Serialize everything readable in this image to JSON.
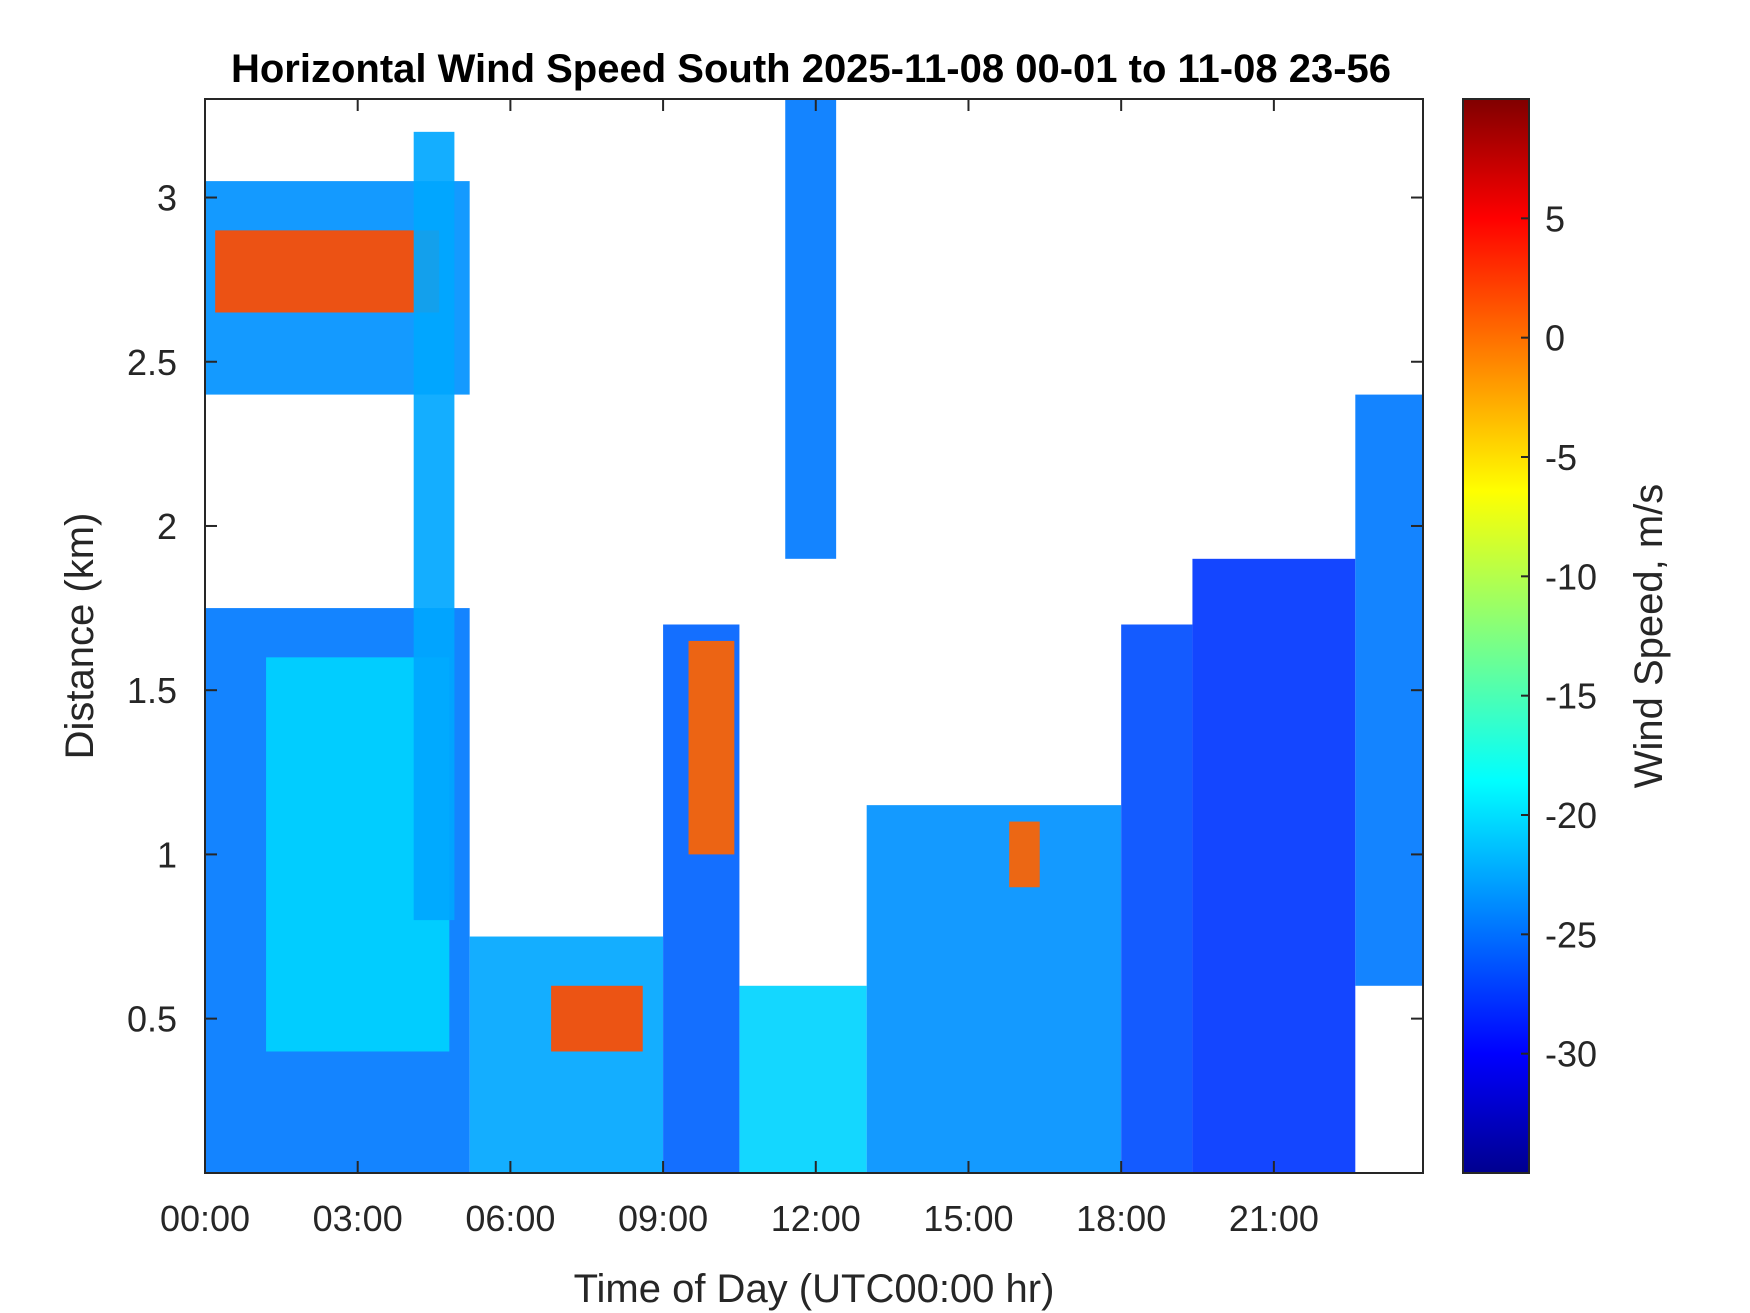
{
  "chart_data": {
    "type": "heatmap",
    "title": "Horizontal Wind Speed South 2025-11-08 00-01 to 11-08 23-56",
    "xlabel": "Time of Day (UTC00:00 hr)",
    "ylabel": "Distance (km)",
    "colorbar_label": "Wind Speed, m/s",
    "colormap": "jet",
    "xlim_hours": [
      0,
      23.93
    ],
    "ylim_km": [
      0.03,
      3.3
    ],
    "clim": [
      -35,
      10
    ],
    "x_ticks": [
      {
        "value": 0,
        "label": "00:00"
      },
      {
        "value": 3,
        "label": "03:00"
      },
      {
        "value": 6,
        "label": "06:00"
      },
      {
        "value": 9,
        "label": "09:00"
      },
      {
        "value": 12,
        "label": "12:00"
      },
      {
        "value": 15,
        "label": "15:00"
      },
      {
        "value": 18,
        "label": "18:00"
      },
      {
        "value": 21,
        "label": "21:00"
      }
    ],
    "y_ticks": [
      {
        "value": 0.5,
        "label": "0.5"
      },
      {
        "value": 1,
        "label": "1"
      },
      {
        "value": 1.5,
        "label": "1.5"
      },
      {
        "value": 2,
        "label": "2"
      },
      {
        "value": 2.5,
        "label": "2.5"
      },
      {
        "value": 3,
        "label": "3"
      }
    ],
    "colorbar_ticks": [
      {
        "value": 5,
        "label": "5"
      },
      {
        "value": 0,
        "label": "0"
      },
      {
        "value": -5,
        "label": "-5"
      },
      {
        "value": -10,
        "label": "-10"
      },
      {
        "value": -15,
        "label": "-15"
      },
      {
        "value": -20,
        "label": "-20"
      },
      {
        "value": -25,
        "label": "-25"
      },
      {
        "value": -30,
        "label": "-30"
      }
    ],
    "regions": [
      {
        "x": [
          0.0,
          5.2
        ],
        "y": [
          0.03,
          1.75
        ],
        "value": -24
      },
      {
        "x": [
          1.2,
          4.8
        ],
        "y": [
          0.4,
          1.6
        ],
        "value": -20
      },
      {
        "x": [
          0.0,
          5.2
        ],
        "y": [
          2.4,
          3.05
        ],
        "value": -23
      },
      {
        "x": [
          0.2,
          4.6
        ],
        "y": [
          2.65,
          2.9
        ],
        "value": 1
      },
      {
        "x": [
          4.1,
          4.9
        ],
        "y": [
          0.8,
          3.2
        ],
        "value": -22
      },
      {
        "x": [
          5.2,
          9.0
        ],
        "y": [
          0.03,
          0.75
        ],
        "value": -22
      },
      {
        "x": [
          6.8,
          8.6
        ],
        "y": [
          0.4,
          0.6
        ],
        "value": 1
      },
      {
        "x": [
          9.0,
          10.5
        ],
        "y": [
          0.03,
          1.7
        ],
        "value": -25
      },
      {
        "x": [
          9.5,
          10.4
        ],
        "y": [
          1.0,
          1.65
        ],
        "value": 0
      },
      {
        "x": [
          10.5,
          13.0
        ],
        "y": [
          0.03,
          0.6
        ],
        "value": -20
      },
      {
        "x": [
          11.4,
          12.4
        ],
        "y": [
          1.9,
          3.3
        ],
        "value": -24
      },
      {
        "x": [
          13.0,
          18.0
        ],
        "y": [
          0.03,
          1.15
        ],
        "value": -23
      },
      {
        "x": [
          15.8,
          16.4
        ],
        "y": [
          0.9,
          1.1
        ],
        "value": 0
      },
      {
        "x": [
          18.0,
          19.4
        ],
        "y": [
          0.03,
          1.7
        ],
        "value": -26
      },
      {
        "x": [
          19.4,
          22.6
        ],
        "y": [
          0.03,
          1.9
        ],
        "value": -27
      },
      {
        "x": [
          22.6,
          23.93
        ],
        "y": [
          0.6,
          2.4
        ],
        "value": -24
      }
    ]
  }
}
